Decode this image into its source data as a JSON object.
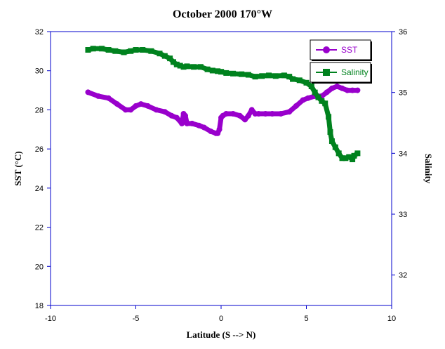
{
  "chart_data": {
    "type": "line",
    "title": "October 2000 170°W",
    "xlabel": "Latitude (S --> N)",
    "ylabel": "SST (°C)",
    "y2label": "Salinity",
    "xlim": [
      -10,
      10
    ],
    "ylim": [
      18,
      32
    ],
    "y2lim": [
      31.5,
      36
    ],
    "x_ticks": [
      -10,
      -5,
      0,
      5,
      10
    ],
    "y_ticks": [
      18,
      20,
      22,
      24,
      26,
      28,
      30,
      32
    ],
    "y2_ticks": [
      32,
      33,
      34,
      35,
      36
    ],
    "grid": false,
    "legend_position": "top-right",
    "series": [
      {
        "name": "SST",
        "axis": "left",
        "color": "#9900cc",
        "marker": "circle",
        "x": [
          -7.8,
          -7.2,
          -6.6,
          -6.1,
          -5.6,
          -5.3,
          -5.0,
          -4.7,
          -4.3,
          -3.8,
          -3.3,
          -2.9,
          -2.6,
          -2.3,
          -2.2,
          -2.1,
          -2.0,
          -1.7,
          -1.3,
          -1.0,
          -0.6,
          -0.3,
          -0.2,
          -0.1,
          0.0,
          0.1,
          0.3,
          0.7,
          1.1,
          1.4,
          1.6,
          1.8,
          2.0,
          2.2,
          2.6,
          3.0,
          3.5,
          4.0,
          4.4,
          4.8,
          5.1,
          5.5,
          5.9,
          6.2,
          6.5,
          6.8,
          7.1,
          7.4,
          7.7,
          8.0
        ],
        "values": [
          28.9,
          28.7,
          28.6,
          28.3,
          28.0,
          28.0,
          28.2,
          28.3,
          28.2,
          28.0,
          27.9,
          27.7,
          27.6,
          27.3,
          27.8,
          27.7,
          27.3,
          27.3,
          27.2,
          27.1,
          26.9,
          26.8,
          26.8,
          27.0,
          27.6,
          27.7,
          27.8,
          27.8,
          27.7,
          27.5,
          27.7,
          28.0,
          27.8,
          27.8,
          27.8,
          27.8,
          27.8,
          27.9,
          28.2,
          28.5,
          28.6,
          28.7,
          28.7,
          28.9,
          29.1,
          29.2,
          29.1,
          29.0,
          29.0,
          29.0
        ]
      },
      {
        "name": "Salinity",
        "axis": "right",
        "color": "#00821e",
        "marker": "square",
        "x": [
          -7.8,
          -7.5,
          -7.0,
          -6.6,
          -6.2,
          -5.7,
          -5.3,
          -5.0,
          -4.6,
          -4.1,
          -3.6,
          -3.3,
          -3.0,
          -2.8,
          -2.6,
          -2.4,
          -2.2,
          -2.0,
          -1.6,
          -1.2,
          -0.8,
          -0.5,
          -0.2,
          0.0,
          0.3,
          0.7,
          1.2,
          1.6,
          2.0,
          2.4,
          2.8,
          3.2,
          3.7,
          4.0,
          4.2,
          4.6,
          5.0,
          5.3,
          5.5,
          5.7,
          5.9,
          6.1,
          6.3,
          6.4,
          6.5,
          6.7,
          6.9,
          7.1,
          7.3,
          7.5,
          7.7,
          7.8,
          8.0
        ],
        "values": [
          35.7,
          35.72,
          35.72,
          35.7,
          35.68,
          35.66,
          35.68,
          35.7,
          35.7,
          35.68,
          35.64,
          35.6,
          35.56,
          35.5,
          35.46,
          35.44,
          35.42,
          35.43,
          35.42,
          35.42,
          35.38,
          35.36,
          35.35,
          35.34,
          35.32,
          35.31,
          35.3,
          35.29,
          35.26,
          35.27,
          35.28,
          35.27,
          35.28,
          35.26,
          35.22,
          35.2,
          35.16,
          35.1,
          35.0,
          34.92,
          34.86,
          34.82,
          34.6,
          34.35,
          34.2,
          34.1,
          34.0,
          33.92,
          33.92,
          33.94,
          33.9,
          33.96,
          34.0
        ]
      }
    ]
  }
}
